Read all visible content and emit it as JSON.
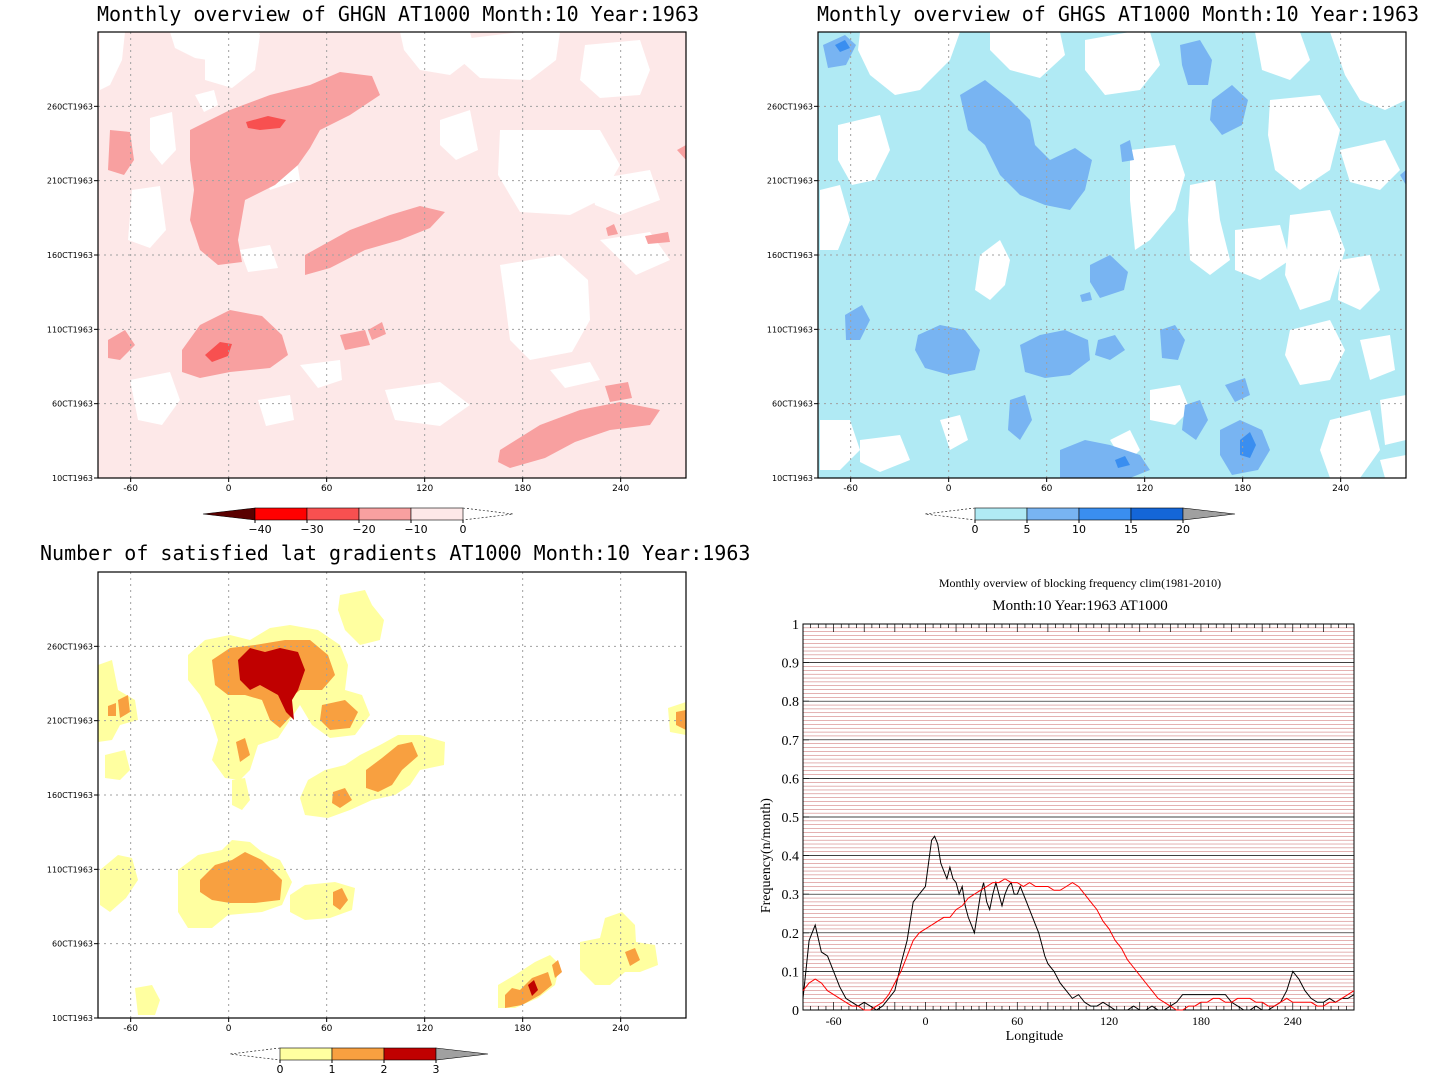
{
  "panels": {
    "ghgn": {
      "title": "Monthly overview of GHGN AT1000 Month:10 Year:1963",
      "colorbar": {
        "ticks": [
          "−40",
          "−30",
          "−20",
          "−10",
          "0"
        ],
        "colors": [
          "#5a0000",
          "#ff0000",
          "#f85050",
          "#f8a0a0",
          "#fde8e8"
        ]
      }
    },
    "ghgs": {
      "title": "Monthly overview of GHGS AT1000 Month:10 Year:1963",
      "colorbar": {
        "ticks": [
          "0",
          "5",
          "10",
          "15",
          "20"
        ],
        "colors": [
          "#b0eaf4",
          "#78b4f2",
          "#3a8ef0",
          "#1466d8",
          "#a0a0a0"
        ]
      }
    },
    "grad": {
      "title": "Number of satisfied lat gradients AT1000 Month:10 Year:1963",
      "colorbar": {
        "ticks": [
          "0",
          "1",
          "2",
          "3"
        ],
        "colors": [
          "#ffffa0",
          "#f8a040",
          "#c00000",
          "#a0a0a0"
        ]
      }
    },
    "freq": {
      "title": "Monthly overview of blocking frequency clim(1981-2010)",
      "subtitle": "Month:10 Year:1963  AT1000"
    }
  },
  "map_axes": {
    "x_ticks": [
      "-60",
      "0",
      "60",
      "120",
      "180",
      "240"
    ],
    "y_ticks": [
      "10CT1963",
      "60CT1963",
      "110CT1963",
      "160CT1963",
      "210CT1963",
      "260CT1963"
    ]
  },
  "chart_data": [
    {
      "type": "heatmap",
      "title": "Monthly overview of GHGN AT1000 Month:10 Year:1963",
      "x_ticks": [
        -60,
        0,
        60,
        120,
        180,
        240
      ],
      "y_ticks": [
        "10CT1963",
        "60CT1963",
        "110CT1963",
        "160CT1963",
        "210CT1963",
        "260CT1963"
      ],
      "colorbar": [
        -40,
        -30,
        -20,
        -10,
        0
      ],
      "xlim": [
        -80,
        280
      ]
    },
    {
      "type": "heatmap",
      "title": "Monthly overview of GHGS AT1000 Month:10 Year:1963",
      "x_ticks": [
        -60,
        0,
        60,
        120,
        180,
        240
      ],
      "y_ticks": [
        "10CT1963",
        "60CT1963",
        "110CT1963",
        "160CT1963",
        "210CT1963",
        "260CT1963"
      ],
      "colorbar": [
        0,
        5,
        10,
        15,
        20
      ],
      "xlim": [
        -80,
        280
      ]
    },
    {
      "type": "heatmap",
      "title": "Number of satisfied lat gradients AT1000 Month:10 Year:1963",
      "x_ticks": [
        -60,
        0,
        60,
        120,
        180,
        240
      ],
      "y_ticks": [
        "10CT1963",
        "60CT1963",
        "110CT1963",
        "160CT1963",
        "210CT1963",
        "260CT1963"
      ],
      "colorbar": [
        0,
        1,
        2,
        3
      ],
      "xlim": [
        -80,
        280
      ]
    },
    {
      "type": "line",
      "title": "Monthly overview of blocking frequency clim(1981-2010)",
      "subtitle": "Month:10 Year:1963  AT1000",
      "xlabel": "Longitude",
      "ylabel": "Frequency(n/month)",
      "xlim": [
        -80,
        280
      ],
      "ylim": [
        0,
        1
      ],
      "x_ticks": [
        -60,
        0,
        60,
        120,
        180,
        240
      ],
      "y_ticks": [
        0,
        0.1,
        0.2,
        0.3,
        0.4,
        0.5,
        0.6,
        0.7,
        0.8,
        0.9,
        1
      ],
      "grid": true,
      "series": [
        {
          "color": "#000000",
          "x": [
            -80,
            -76,
            -72,
            -68,
            -64,
            -60,
            -56,
            -52,
            -48,
            -44,
            -40,
            -36,
            -32,
            -28,
            -24,
            -20,
            -16,
            -12,
            -8,
            -4,
            0,
            2,
            4,
            6,
            8,
            10,
            12,
            14,
            16,
            18,
            20,
            22,
            24,
            26,
            28,
            30,
            32,
            34,
            36,
            38,
            40,
            42,
            44,
            46,
            48,
            50,
            52,
            54,
            56,
            58,
            60,
            62,
            64,
            66,
            68,
            70,
            72,
            74,
            76,
            78,
            80,
            84,
            88,
            92,
            96,
            100,
            104,
            108,
            112,
            116,
            120,
            124,
            128,
            132,
            136,
            140,
            144,
            148,
            152,
            156,
            160,
            164,
            168,
            172,
            176,
            180,
            184,
            188,
            192,
            196,
            200,
            204,
            208,
            212,
            216,
            220,
            224,
            228,
            232,
            236,
            240,
            244,
            248,
            252,
            256,
            260,
            264,
            268,
            272,
            276,
            280
          ],
          "y": [
            0.03,
            0.18,
            0.22,
            0.15,
            0.14,
            0.1,
            0.06,
            0.03,
            0.02,
            0.01,
            0.02,
            0.01,
            0.0,
            0.01,
            0.03,
            0.05,
            0.12,
            0.18,
            0.28,
            0.3,
            0.32,
            0.38,
            0.44,
            0.45,
            0.43,
            0.38,
            0.36,
            0.34,
            0.37,
            0.34,
            0.33,
            0.3,
            0.32,
            0.27,
            0.24,
            0.22,
            0.2,
            0.25,
            0.3,
            0.33,
            0.28,
            0.26,
            0.3,
            0.33,
            0.3,
            0.27,
            0.3,
            0.32,
            0.33,
            0.3,
            0.3,
            0.32,
            0.3,
            0.28,
            0.26,
            0.24,
            0.22,
            0.2,
            0.17,
            0.14,
            0.12,
            0.1,
            0.07,
            0.05,
            0.03,
            0.04,
            0.02,
            0.01,
            0.01,
            0.02,
            0.01,
            0.0,
            0.0,
            0.0,
            0.01,
            0.0,
            0.0,
            0.01,
            0.0,
            0.0,
            0.01,
            0.02,
            0.04,
            0.04,
            0.04,
            0.04,
            0.04,
            0.04,
            0.04,
            0.04,
            0.02,
            0.01,
            0.0,
            0.0,
            0.01,
            0.0,
            0.0,
            0.01,
            0.02,
            0.05,
            0.1,
            0.08,
            0.05,
            0.03,
            0.02,
            0.02,
            0.03,
            0.02,
            0.03,
            0.03,
            0.04
          ]
        },
        {
          "color": "#ff0000",
          "x": [
            -80,
            -76,
            -72,
            -68,
            -64,
            -60,
            -56,
            -52,
            -48,
            -44,
            -40,
            -36,
            -32,
            -28,
            -24,
            -20,
            -16,
            -12,
            -8,
            -4,
            0,
            4,
            8,
            12,
            16,
            20,
            24,
            28,
            32,
            36,
            40,
            44,
            48,
            52,
            56,
            60,
            64,
            68,
            72,
            76,
            80,
            84,
            88,
            92,
            96,
            100,
            104,
            108,
            112,
            116,
            120,
            124,
            128,
            132,
            136,
            140,
            144,
            148,
            152,
            156,
            160,
            164,
            168,
            172,
            176,
            180,
            184,
            188,
            192,
            196,
            200,
            204,
            208,
            212,
            216,
            220,
            224,
            228,
            232,
            236,
            240,
            244,
            248,
            252,
            256,
            260,
            264,
            268,
            272,
            276,
            280
          ],
          "y": [
            0.05,
            0.07,
            0.08,
            0.07,
            0.05,
            0.04,
            0.03,
            0.02,
            0.01,
            0.01,
            0.0,
            0.0,
            0.01,
            0.02,
            0.04,
            0.07,
            0.1,
            0.14,
            0.18,
            0.2,
            0.21,
            0.22,
            0.23,
            0.24,
            0.24,
            0.26,
            0.27,
            0.29,
            0.3,
            0.31,
            0.32,
            0.33,
            0.33,
            0.34,
            0.33,
            0.33,
            0.32,
            0.33,
            0.32,
            0.32,
            0.32,
            0.31,
            0.31,
            0.32,
            0.33,
            0.32,
            0.3,
            0.28,
            0.26,
            0.23,
            0.21,
            0.18,
            0.16,
            0.13,
            0.11,
            0.09,
            0.07,
            0.05,
            0.03,
            0.02,
            0.01,
            0.0,
            0.0,
            0.01,
            0.01,
            0.02,
            0.02,
            0.03,
            0.03,
            0.02,
            0.02,
            0.03,
            0.03,
            0.03,
            0.02,
            0.02,
            0.01,
            0.01,
            0.02,
            0.03,
            0.02,
            0.02,
            0.02,
            0.02,
            0.01,
            0.01,
            0.02,
            0.02,
            0.03,
            0.04,
            0.05
          ]
        }
      ]
    }
  ]
}
